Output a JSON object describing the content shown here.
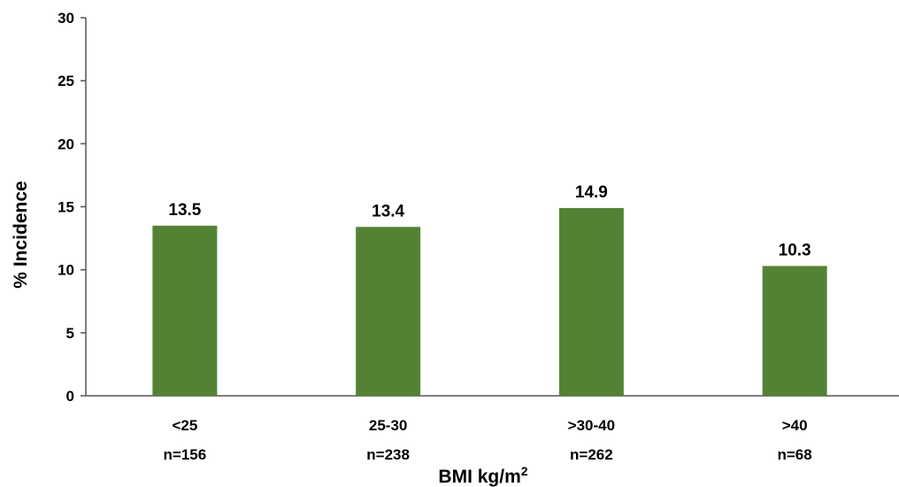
{
  "chart_data": {
    "type": "bar",
    "categories": [
      "<25",
      "25-30",
      ">30-40",
      ">40"
    ],
    "category_n": [
      "n=156",
      "n=238",
      "n=262",
      "n=68"
    ],
    "values": [
      13.5,
      13.4,
      14.9,
      10.3
    ],
    "data_labels": [
      "13.5",
      "13.4",
      "14.9",
      "10.3"
    ],
    "ylabel": "% Incidence",
    "xlabel": {
      "text": "BMI kg/m",
      "superscript": "2"
    },
    "ylim": [
      0,
      30
    ],
    "yticks": [
      "0",
      "5",
      "10",
      "15",
      "20",
      "25",
      "30"
    ],
    "grid": false,
    "bar_color": "#548235"
  }
}
